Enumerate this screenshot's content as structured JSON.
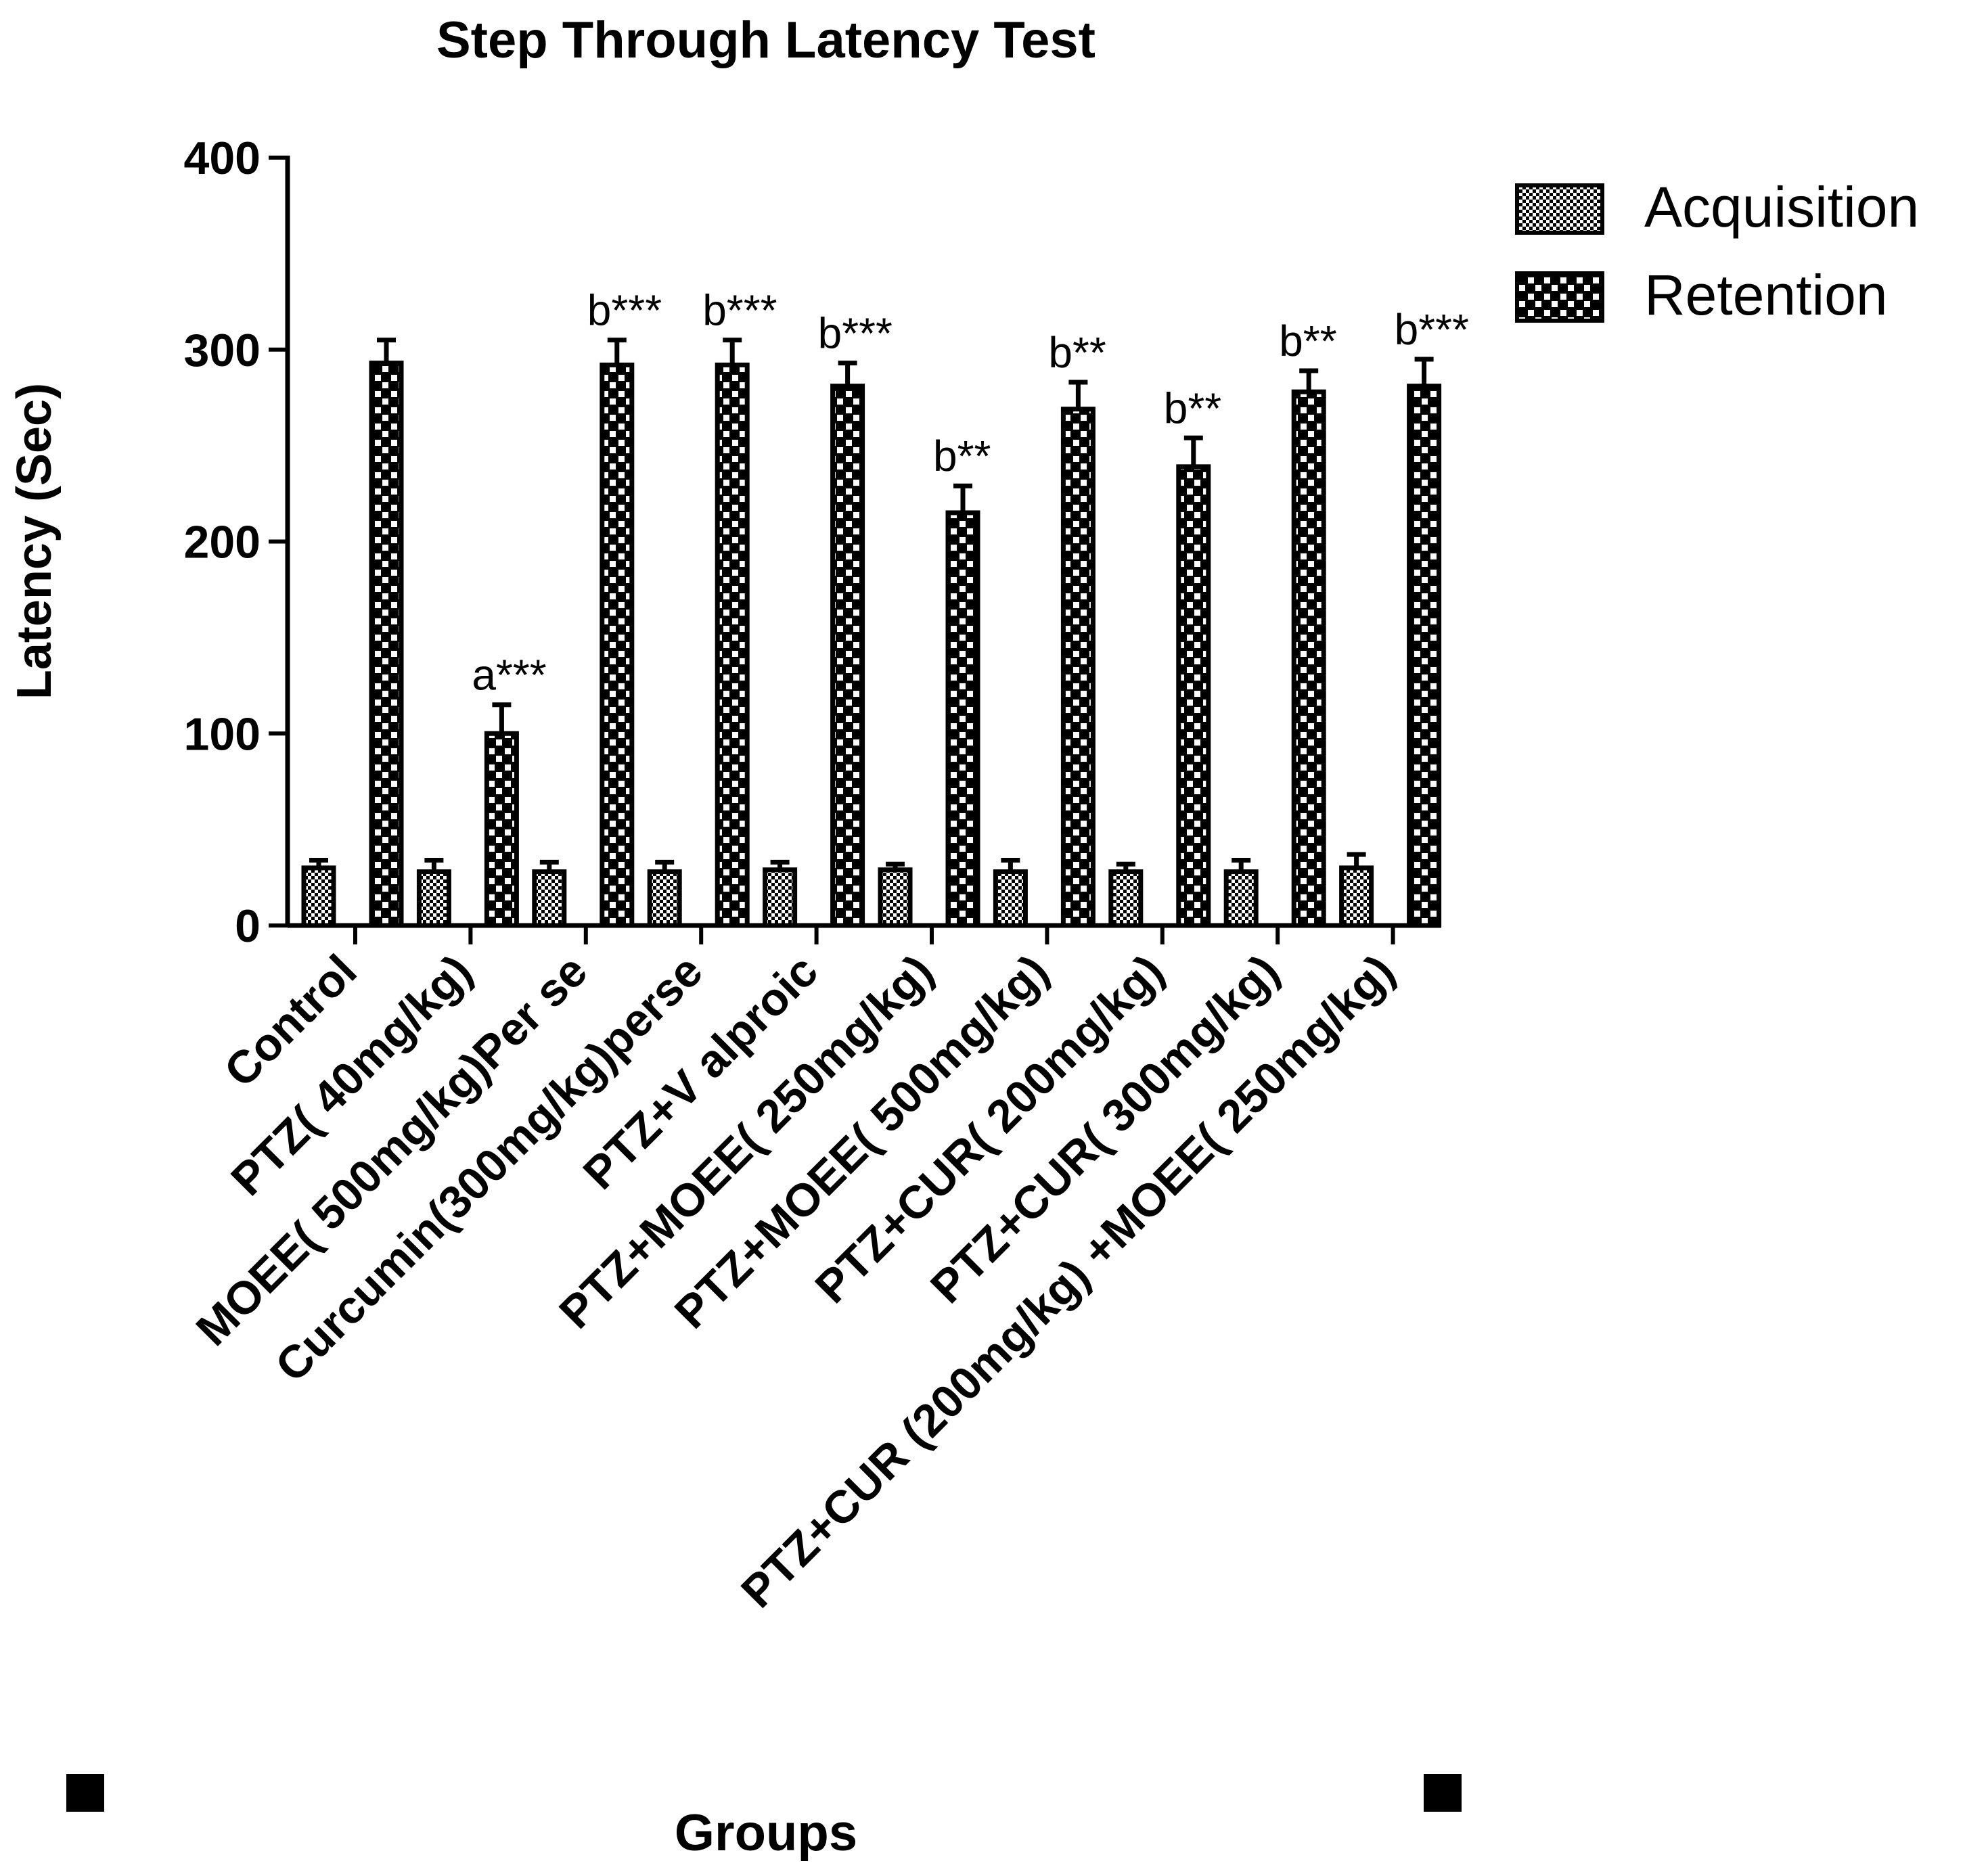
{
  "chart_data": {
    "type": "bar",
    "title": "Step Through Latency Test",
    "xlabel": "Groups",
    "ylabel": "Latency (Sec)",
    "ylim": [
      0,
      400
    ],
    "yticks": [
      "0",
      "100",
      "200",
      "300",
      "400"
    ],
    "categories": [
      "Control",
      "PTZ( 40mg/kg)",
      "MOEE( 500mg/kg)Per se",
      "Curcumin(300mg/kg)perse",
      "PTZ+V alproic",
      "PTZ+MOEE( 250mg/kg)",
      "PTZ+MOEE( 500mg/kg)",
      "PTZ+CUR( 200mg/kg)",
      "PTZ+CUR( 300mg/kg)",
      "PTZ+CUR (200mg/kg) +MOEE( 250mg/kg)"
    ],
    "series": [
      {
        "name": "Acquisition",
        "pattern": "checker-fine",
        "values": [
          30,
          28,
          28,
          28,
          29,
          29,
          28,
          28,
          28,
          30
        ],
        "errors": [
          4,
          6,
          5,
          5,
          4,
          3,
          6,
          4,
          6,
          7
        ]
      },
      {
        "name": "Retention",
        "pattern": "checker-coarse",
        "values": [
          293,
          100,
          292,
          292,
          281,
          215,
          269,
          239,
          278,
          281
        ],
        "errors": [
          12,
          15,
          13,
          13,
          12,
          14,
          14,
          15,
          11,
          14
        ]
      }
    ],
    "annotations": [
      "",
      "a***",
      "b***",
      "b***",
      "b***",
      "b**",
      "b**",
      "b**",
      "b**",
      "b***"
    ],
    "legend_position": "top-right",
    "grid": false,
    "colors": {
      "bar_fill": "#000000",
      "bar_pattern": "#ffffff",
      "axis": "#000000",
      "background": "#ffffff"
    }
  }
}
